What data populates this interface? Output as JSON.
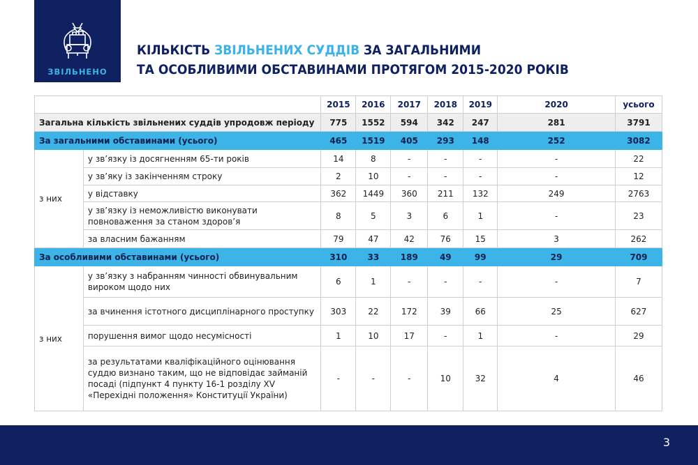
{
  "logo": {
    "label": "ЗВІЛЬНЕНО",
    "icon": "judge-with-box-icon"
  },
  "title": {
    "part1": "КІЛЬКІСТЬ ",
    "highlight": "ЗВІЛЬНЕНИХ СУДДІВ",
    "part2": " ЗА ЗАГАЛЬНИМИ",
    "line2": "ТА ОСОБЛИВИМИ ОБСТАВИНАМИ ПРОТЯГОМ 2015-2020 РОКІВ"
  },
  "colors": {
    "navy": "#0f2161",
    "accent": "#3cb4e7"
  },
  "table": {
    "headers": [
      "2015",
      "2016",
      "2017",
      "2018",
      "2019",
      "2020",
      "усього"
    ],
    "total": {
      "label": "Загальна кількість звільнених суддів упродовж періоду",
      "values": [
        "775",
        "1552",
        "594",
        "342",
        "247",
        "281",
        "3791"
      ]
    },
    "general": {
      "label": "За загальними обставинами (усього)",
      "values": [
        "465",
        "1519",
        "405",
        "293",
        "148",
        "252",
        "3082"
      ],
      "group_label": "з них",
      "rows": [
        {
          "label": "у зв’язку із досягненням 65-ти років",
          "values": [
            "14",
            "8",
            "-",
            "-",
            "-",
            "-",
            "22"
          ]
        },
        {
          "label": "у зв’яку із закінченням строку",
          "values": [
            "2",
            "10",
            "-",
            "-",
            "-",
            "-",
            "12"
          ]
        },
        {
          "label": "у відставку",
          "values": [
            "362",
            "1449",
            "360",
            "211",
            "132",
            "249",
            "2763"
          ]
        },
        {
          "label": "у зв’язку із неможливістю виконувати повноваження за станом здоров’я",
          "values": [
            "8",
            "5",
            "3",
            "6",
            "1",
            "-",
            "23"
          ]
        },
        {
          "label": "за власним бажанням",
          "values": [
            "79",
            "47",
            "42",
            "76",
            "15",
            "3",
            "262"
          ]
        }
      ]
    },
    "special": {
      "label": "За особливими обставинами (усього)",
      "values": [
        "310",
        "33",
        "189",
        "49",
        "99",
        "29",
        "709"
      ],
      "group_label": "з них",
      "rows": [
        {
          "label": "у зв’язку з набранням чинності обвинувальним вироком щодо них",
          "values": [
            "6",
            "1",
            "-",
            "-",
            "-",
            "-",
            "7"
          ]
        },
        {
          "label": "за вчинення істотного дисциплінарного проступку",
          "values": [
            "303",
            "22",
            "172",
            "39",
            "66",
            "25",
            "627"
          ]
        },
        {
          "label": "порушення вимог щодо несумісності",
          "values": [
            "1",
            "10",
            "17",
            "-",
            "1",
            "-",
            "29"
          ]
        },
        {
          "label": "за результатами кваліфікаційного оцінювання суддю визнано таким, що не відповідає займаній посаді (підпункт 4 пункту 16-1 розділу XV «Перехідні положення» Конституції України)",
          "values": [
            "-",
            "-",
            "-",
            "10",
            "32",
            "4",
            "46"
          ]
        }
      ]
    }
  },
  "footer": {
    "page": "3"
  }
}
